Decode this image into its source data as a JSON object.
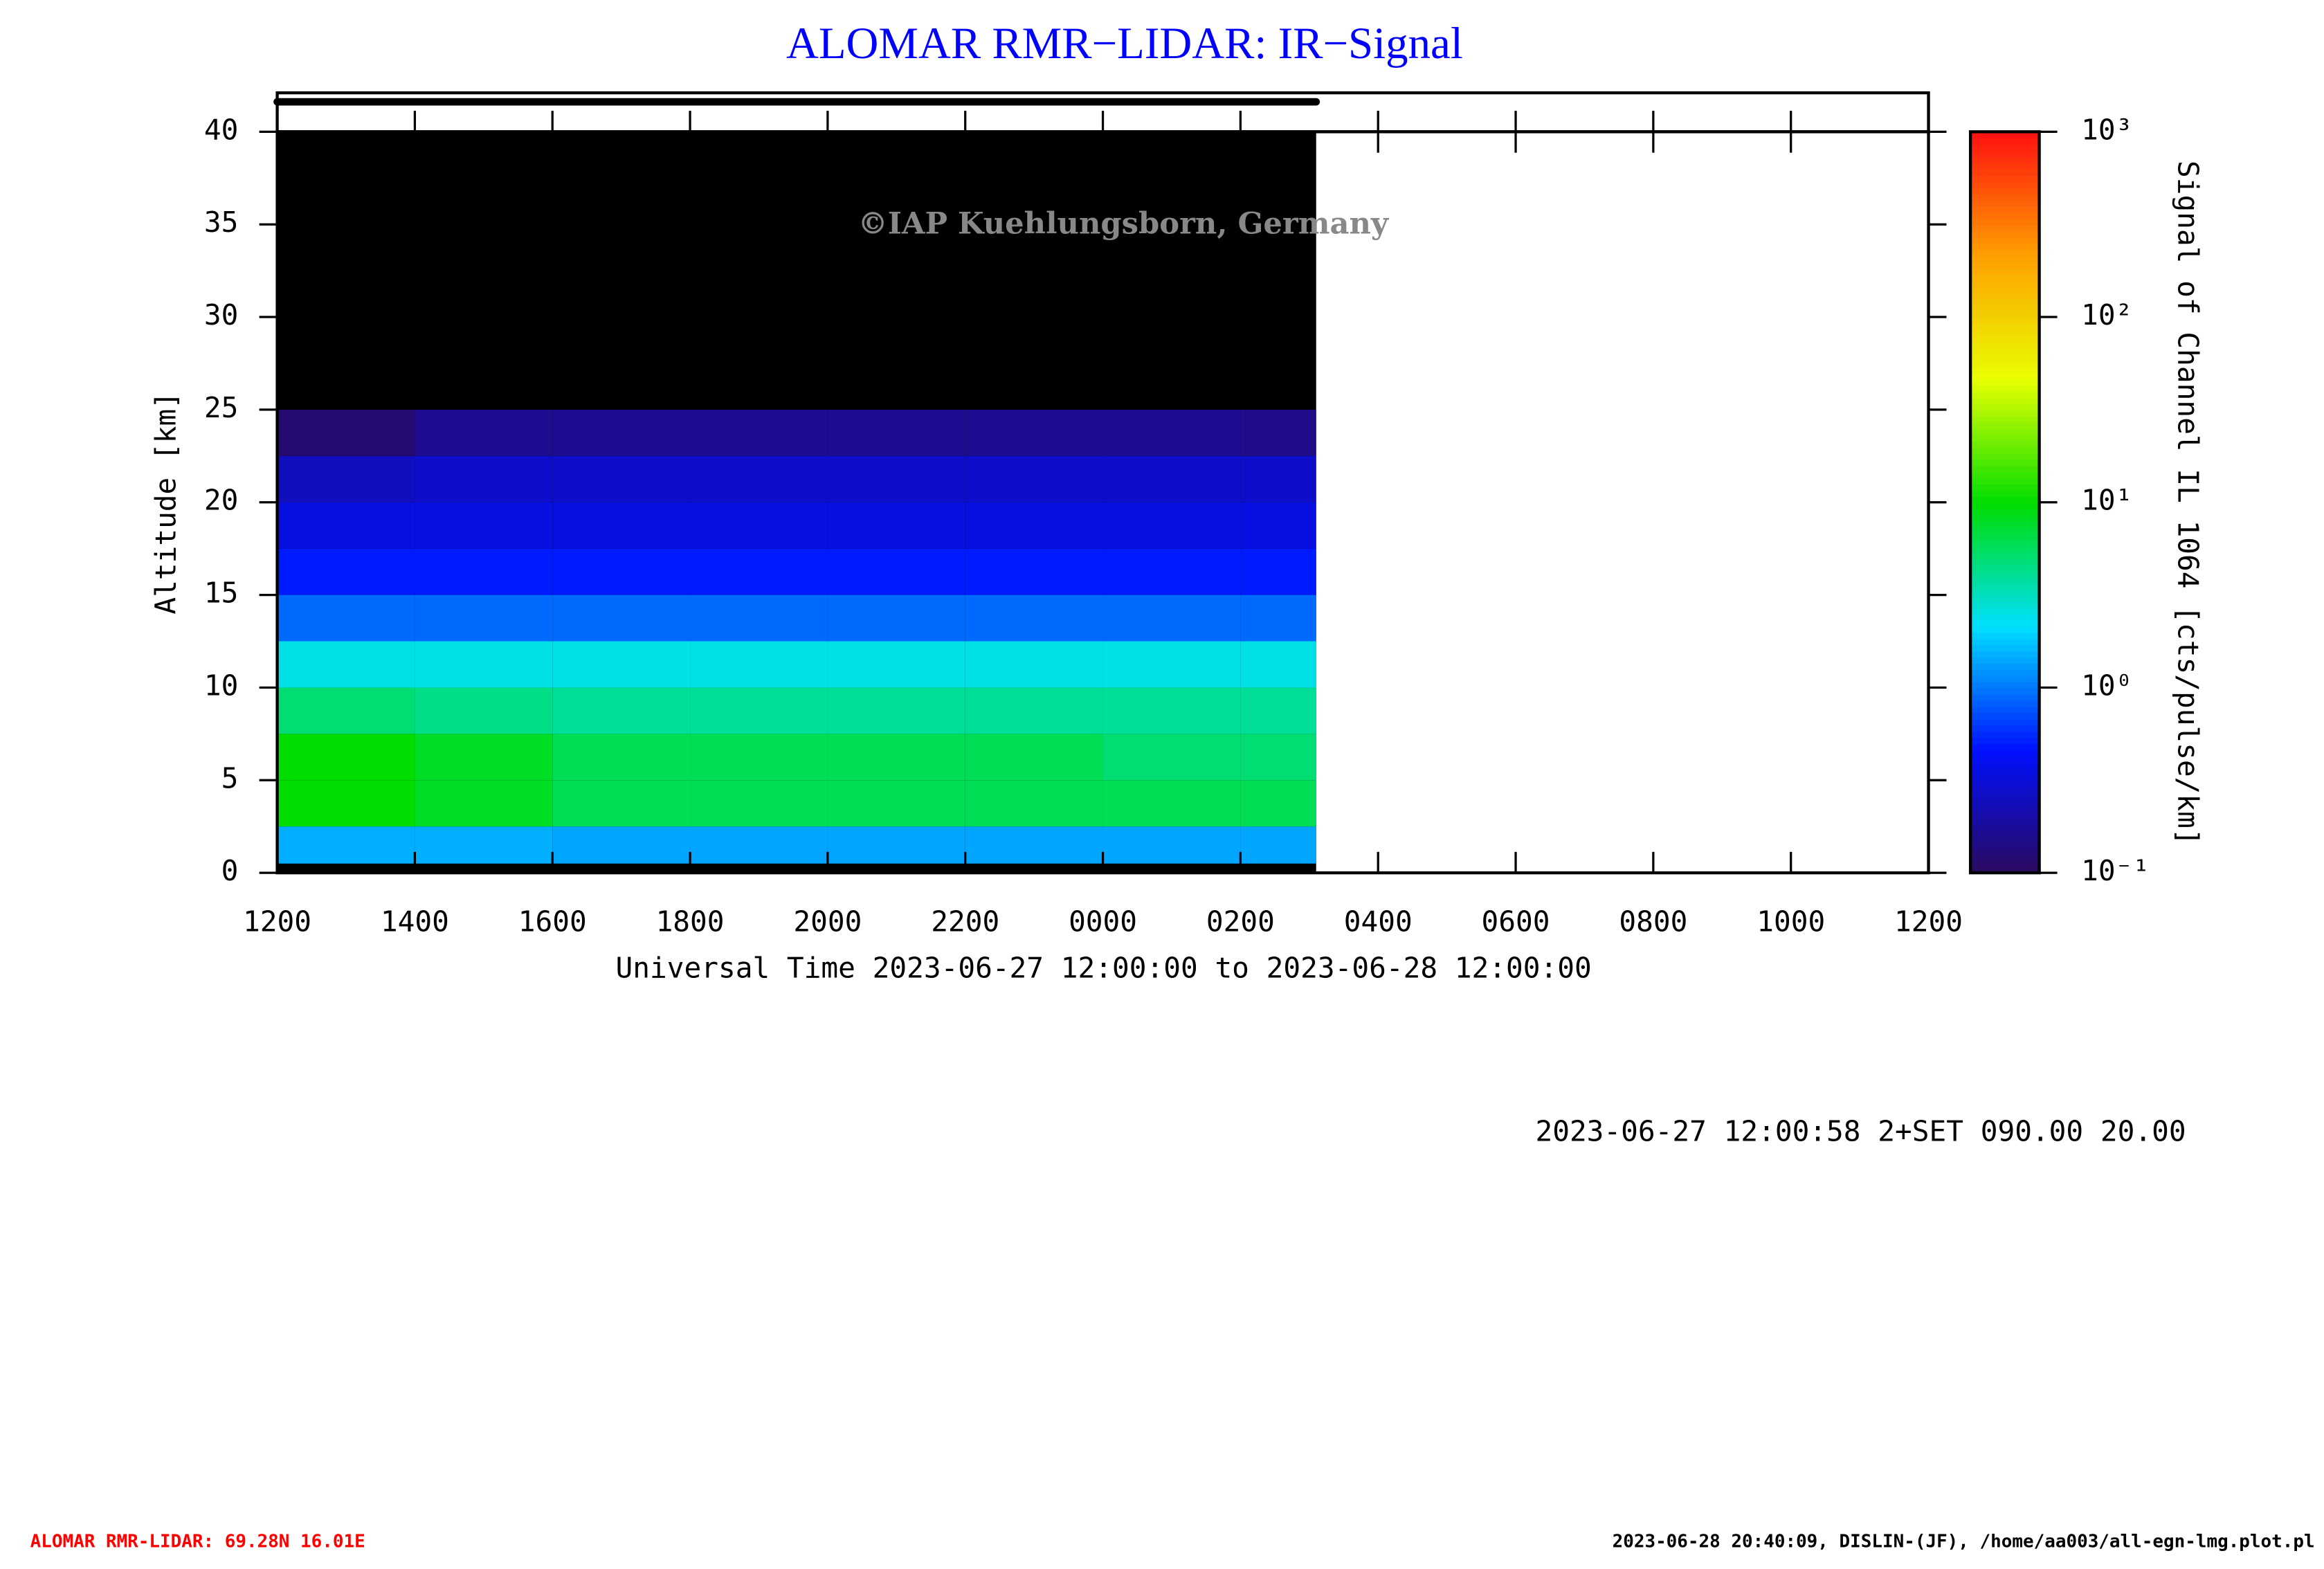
{
  "chart_data": {
    "type": "heatmap",
    "title": "ALOMAR RMR−LIDAR: IR−Signal",
    "watermark": "©IAP Kuehlungsborn, Germany",
    "x_label": "Universal Time 2023-06-27 12:00:00 to 2023-06-28 12:00:00",
    "y_label": "Altitude [km]",
    "colorbar_label": "Signal of Channel IL 1064 [cts/pulse/km]",
    "xlim": [
      0,
      24
    ],
    "xticks": [
      {
        "value": 0,
        "label": "1200"
      },
      {
        "value": 2,
        "label": "1400"
      },
      {
        "value": 4,
        "label": "1600"
      },
      {
        "value": 6,
        "label": "1800"
      },
      {
        "value": 8,
        "label": "2000"
      },
      {
        "value": 10,
        "label": "2200"
      },
      {
        "value": 12,
        "label": "0000"
      },
      {
        "value": 14,
        "label": "0200"
      },
      {
        "value": 16,
        "label": "0400"
      },
      {
        "value": 18,
        "label": "0600"
      },
      {
        "value": 20,
        "label": "0800"
      },
      {
        "value": 22,
        "label": "1000"
      },
      {
        "value": 24,
        "label": "1200"
      }
    ],
    "ylim": [
      0,
      40
    ],
    "yticks": [
      0,
      5,
      10,
      15,
      20,
      25,
      30,
      35,
      40
    ],
    "xbins": [
      0,
      2,
      4,
      6,
      8,
      10,
      12,
      14,
      15.1
    ],
    "ybins": [
      0.5,
      2.5,
      5,
      7.5,
      10,
      12.5,
      15,
      17.5,
      20,
      22.5,
      25
    ],
    "values": [
      [
        1.5,
        1.5,
        1.4,
        1.4,
        1.4,
        1.4,
        1.4,
        1.4
      ],
      [
        10,
        8,
        6,
        6,
        6,
        6,
        6,
        6
      ],
      [
        10,
        8,
        6,
        6,
        6,
        6,
        5,
        5
      ],
      [
        5,
        4.5,
        4,
        4,
        4,
        4,
        4,
        4
      ],
      [
        2.5,
        2.5,
        2.5,
        2.5,
        2.5,
        2.5,
        2.5,
        2.5
      ],
      [
        0.9,
        0.9,
        0.9,
        0.9,
        0.9,
        0.9,
        0.9,
        0.9
      ],
      [
        0.5,
        0.5,
        0.5,
        0.5,
        0.5,
        0.5,
        0.5,
        0.5
      ],
      [
        0.35,
        0.35,
        0.35,
        0.35,
        0.35,
        0.35,
        0.35,
        0.35
      ],
      [
        0.25,
        0.28,
        0.28,
        0.28,
        0.28,
        0.28,
        0.28,
        0.28
      ],
      [
        0.12,
        0.16,
        0.16,
        0.16,
        0.16,
        0.16,
        0.16,
        0.15
      ]
    ],
    "colorlim": [
      0.1,
      1000
    ],
    "colorscale": "log",
    "colormap": [
      "#2a0a5e",
      "#0010ff",
      "#00e0ff",
      "#00dd00",
      "#e8ff00",
      "#ffa000",
      "#ff1010"
    ],
    "cticks": [
      {
        "value": 0.1,
        "label": "10⁻¹"
      },
      {
        "value": 1,
        "label": "10⁰"
      },
      {
        "value": 10,
        "label": "10¹"
      },
      {
        "value": 100,
        "label": "10²"
      },
      {
        "value": 1000,
        "label": "10³"
      }
    ],
    "info": "2023-06-27 12:00:58 2+SET 090.00 20.00",
    "footer_left": "ALOMAR RMR-LIDAR: 69.28N 16.01E",
    "footer_right": "2023-06-28 20:40:09, DISLIN-(JF), /home/aa003/all-egn-lmg.plot.pl"
  }
}
